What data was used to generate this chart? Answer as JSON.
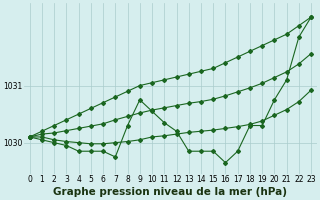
{
  "title": "Graphe pression niveau de la mer (hPa)",
  "x_hours": [
    0,
    1,
    2,
    3,
    4,
    5,
    6,
    7,
    8,
    9,
    10,
    11,
    12,
    13,
    14,
    15,
    16,
    17,
    18,
    19,
    20,
    21,
    22,
    23
  ],
  "line_actual": [
    1030.1,
    1030.05,
    1030.0,
    1029.95,
    1029.85,
    1029.85,
    1029.85,
    1029.75,
    1030.3,
    1030.75,
    1030.55,
    1030.35,
    1030.2,
    1029.85,
    1029.85,
    1029.85,
    1029.65,
    1029.85,
    1030.3,
    1030.3,
    1030.75,
    1031.1,
    1031.85,
    1032.2
  ],
  "line_max": [
    1030.1,
    1030.2,
    1030.3,
    1030.4,
    1030.5,
    1030.6,
    1030.7,
    1030.8,
    1030.9,
    1031.0,
    1031.05,
    1031.1,
    1031.15,
    1031.2,
    1031.25,
    1031.3,
    1031.4,
    1031.5,
    1031.6,
    1031.7,
    1031.8,
    1031.9,
    1032.05,
    1032.2
  ],
  "line_min": [
    1030.1,
    1030.1,
    1030.05,
    1030.02,
    1030.0,
    1029.98,
    1029.98,
    1030.0,
    1030.02,
    1030.05,
    1030.1,
    1030.12,
    1030.15,
    1030.18,
    1030.2,
    1030.22,
    1030.25,
    1030.28,
    1030.32,
    1030.38,
    1030.48,
    1030.58,
    1030.72,
    1030.92
  ],
  "line_avg": [
    1030.1,
    1030.15,
    1030.17,
    1030.21,
    1030.25,
    1030.29,
    1030.33,
    1030.4,
    1030.46,
    1030.52,
    1030.57,
    1030.61,
    1030.65,
    1030.69,
    1030.72,
    1030.76,
    1030.82,
    1030.89,
    1030.96,
    1031.04,
    1031.14,
    1031.24,
    1031.38,
    1031.56
  ],
  "ylim": [
    1029.45,
    1032.45
  ],
  "yticks": [
    1030,
    1031
  ],
  "bg_color": "#d6eeee",
  "grid_color": "#aacccc",
  "line_color": "#1a6620",
  "marker_color": "#1a6620",
  "title_fontsize": 7.5,
  "tick_fontsize": 5.5
}
